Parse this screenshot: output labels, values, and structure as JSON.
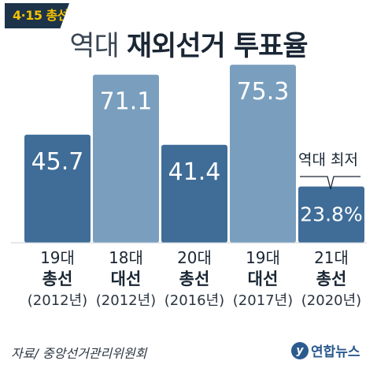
{
  "badge": "4·15 총선",
  "title": {
    "light": "역대",
    "bold": "재외선거 투표율"
  },
  "chart_data": {
    "type": "bar",
    "title": "역대 재외선거 투표율",
    "categories": [
      {
        "line1": "19대",
        "line2": "총선",
        "line3": "(2012년)"
      },
      {
        "line1": "18대",
        "line2": "대선",
        "line3": "(2012년)"
      },
      {
        "line1": "20대",
        "line2": "총선",
        "line3": "(2016년)"
      },
      {
        "line1": "19대",
        "line2": "대선",
        "line3": "(2017년)"
      },
      {
        "line1": "21대",
        "line2": "총선",
        "line3": "(2020년)"
      }
    ],
    "values": [
      45.7,
      71.1,
      41.4,
      75.3,
      23.8
    ],
    "value_labels": [
      "45.7",
      "71.1",
      "41.4",
      "75.3",
      "23.8%"
    ],
    "bar_colors": [
      "#3f6d98",
      "#7a9fbe",
      "#3f6d98",
      "#7a9fbe",
      "#3f6d98"
    ],
    "annotation": "역대 최저",
    "ylim": [
      0,
      80
    ],
    "grid": false
  },
  "source": "자료/ 중앙선거관리위원회",
  "logo": {
    "mark": "y",
    "text": "연합뉴스"
  }
}
